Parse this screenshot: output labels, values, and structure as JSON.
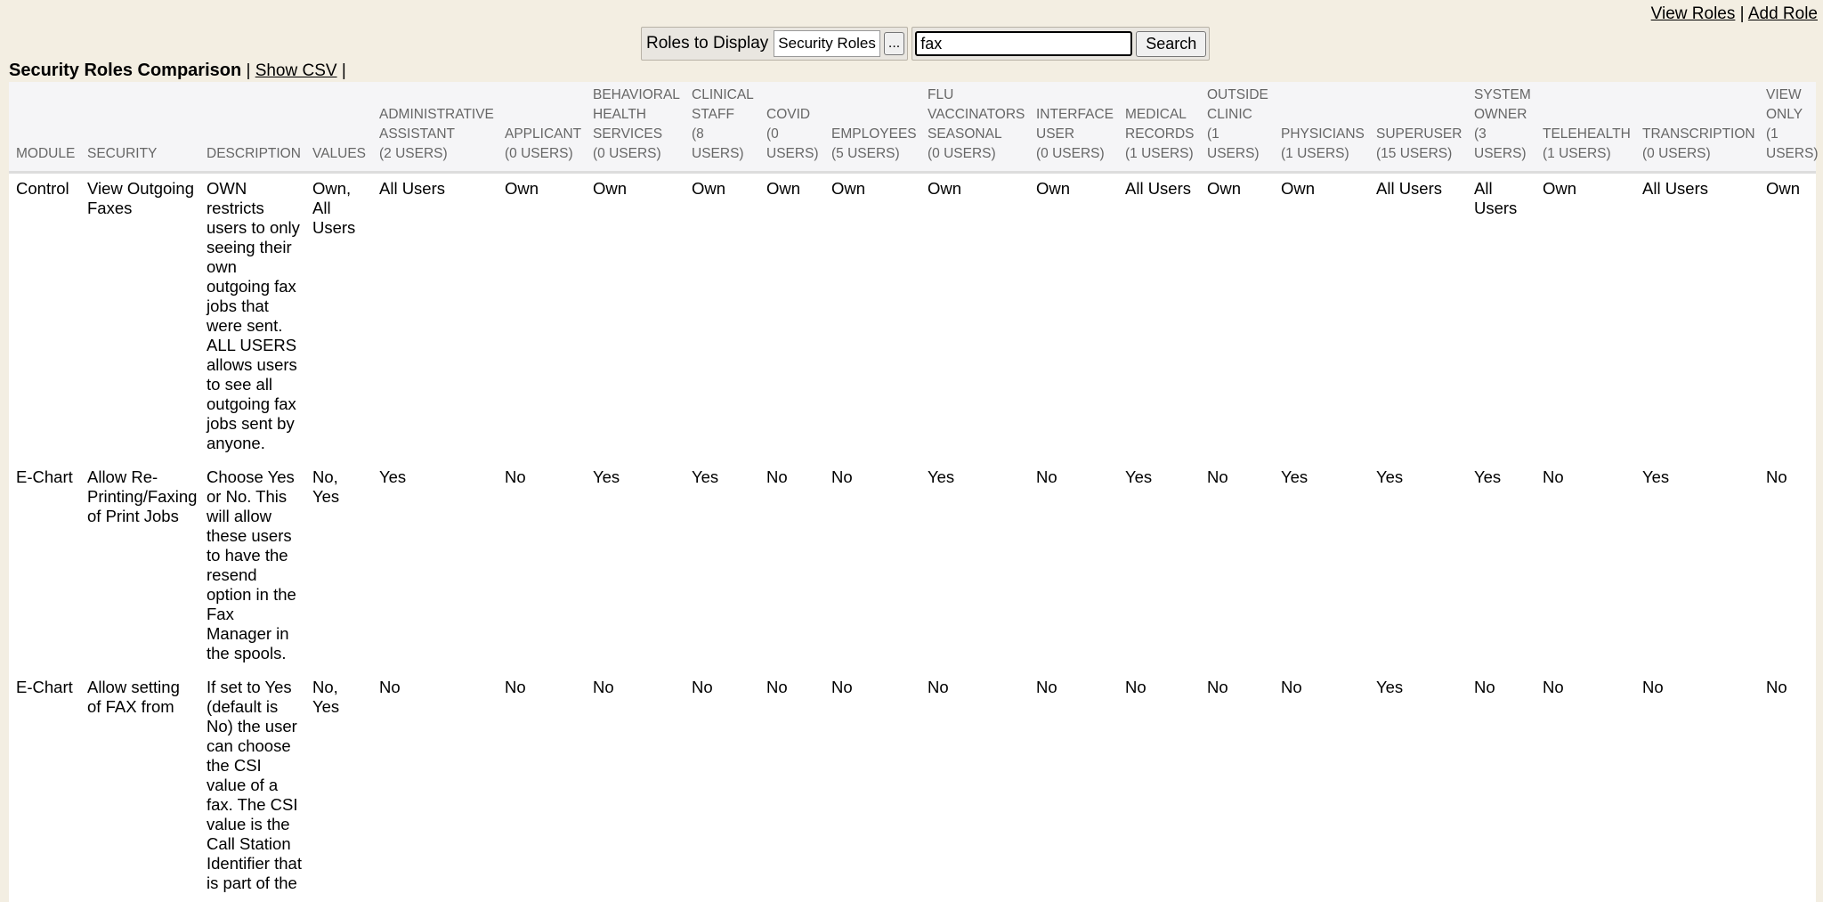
{
  "top_links": [
    "View Roles",
    "Add Role"
  ],
  "toolbar": {
    "roles_label": "Roles to Display",
    "roles_select": "Security Roles",
    "roles_button": "...",
    "search_text": "fax",
    "search_button": "Search"
  },
  "header": {
    "title": "Security Roles Comparison",
    "csv_link": "Show CSV"
  },
  "table": {
    "columns": [
      "MODULE",
      "SECURITY",
      "DESCRIPTION",
      "VALUES"
    ],
    "roles": [
      {
        "name": "ADMINISTRATIVE ASSISTANT",
        "users": "(2 USERS)"
      },
      {
        "name": "APPLICANT",
        "users": "(0 USERS)"
      },
      {
        "name": "BEHAVIORAL HEALTH SERVICES",
        "users": "(0 USERS)"
      },
      {
        "name": "CLINICAL STAFF",
        "users": "(8 USERS)"
      },
      {
        "name": "COVID",
        "users": "(0 USERS)"
      },
      {
        "name": "EMPLOYEES",
        "users": "(5 USERS)"
      },
      {
        "name": "FLU VACCINATORS SEASONAL",
        "users": "(0 USERS)"
      },
      {
        "name": "INTERFACE USER",
        "users": "(0 USERS)"
      },
      {
        "name": "MEDICAL RECORDS",
        "users": "(1 USERS)"
      },
      {
        "name": "OUTSIDE CLINIC",
        "users": "(1 USERS)"
      },
      {
        "name": "PHYSICIANS",
        "users": "(1 USERS)"
      },
      {
        "name": "SUPERUSER",
        "users": "(15 USERS)"
      },
      {
        "name": "SYSTEM OWNER",
        "users": "(3 USERS)"
      },
      {
        "name": "TELEHEALTH",
        "users": "(1 USERS)"
      },
      {
        "name": "TRANSCRIPTION",
        "users": "(0 USERS)"
      },
      {
        "name": "VIEW ONLY",
        "users": "(1 USERS)"
      }
    ],
    "rows": [
      {
        "module": "Control",
        "security": "View Outgoing Faxes",
        "description": "OWN restricts users to only seeing their own outgoing fax jobs that were sent. ALL USERS allows users to see all outgoing fax jobs sent by anyone.",
        "values": "Own, All Users",
        "cells": [
          "All Users",
          "Own",
          "Own",
          "Own",
          "Own",
          "Own",
          "Own",
          "Own",
          "All Users",
          "Own",
          "Own",
          "All Users",
          "All Users",
          "Own",
          "All Users",
          "Own"
        ]
      },
      {
        "module": "E-Chart",
        "security": "Allow Re-Printing/Faxing of Print Jobs",
        "description": "Choose Yes or No. This will allow these users to have the resend option in the Fax Manager in the spools.",
        "values": "No, Yes",
        "cells": [
          "Yes",
          "No",
          "Yes",
          "Yes",
          "No",
          "No",
          "Yes",
          "No",
          "Yes",
          "No",
          "Yes",
          "Yes",
          "Yes",
          "No",
          "Yes",
          "No"
        ]
      },
      {
        "module": "E-Chart",
        "security": "Allow setting of FAX from",
        "description": "If set to Yes (default is No) the user can choose the CSI value of a fax. The CSI value is the Call Station Identifier that is part of the",
        "values": "No, Yes",
        "cells": [
          "No",
          "No",
          "No",
          "No",
          "No",
          "No",
          "No",
          "No",
          "No",
          "No",
          "No",
          "Yes",
          "No",
          "No",
          "No",
          "No"
        ]
      }
    ]
  }
}
